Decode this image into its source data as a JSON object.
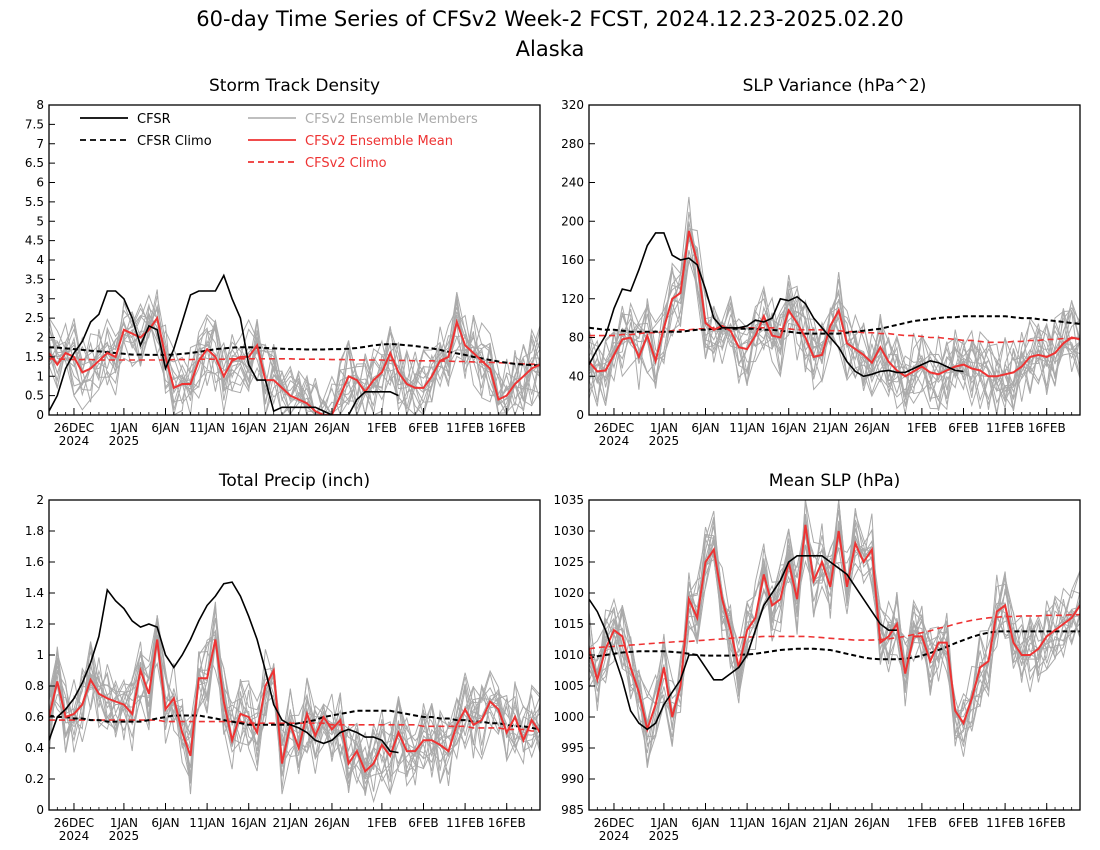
{
  "figure": {
    "title": "60-day Time Series of CFSv2 Week-2 FCST, 2024.12.23-2025.02.20",
    "subtitle": "Alaska"
  },
  "legend": {
    "entries": [
      {
        "label": "CFSR",
        "color": "#000000",
        "style": "solid"
      },
      {
        "label": "CFSR Climo",
        "color": "#000000",
        "style": "dashed"
      },
      {
        "label": "CFSv2 Ensemble Members",
        "color": "#aaaaaa",
        "style": "solid"
      },
      {
        "label": "CFSv2 Ensemble Mean",
        "color": "#ee3333",
        "style": "solid"
      },
      {
        "label": "CFSv2 Climo",
        "color": "#ee3333",
        "style": "dashed"
      }
    ]
  },
  "colors": {
    "cfsr": "#000000",
    "members": "#aaaaaa",
    "mean": "#ee3333"
  },
  "chart_data": [
    {
      "type": "line",
      "title": "Storm Track Density",
      "x_start": "2024-12-23",
      "x_days": 60,
      "x_unit": "day",
      "x_ticks": [
        "26DEC",
        "1JAN",
        "6JAN",
        "11JAN",
        "16JAN",
        "21JAN",
        "26JAN",
        "1FEB",
        "6FEB",
        "11FEB",
        "16FEB"
      ],
      "x_tick_days": [
        3,
        9,
        14,
        19,
        24,
        29,
        34,
        40,
        45,
        50,
        55
      ],
      "year_labels": [
        {
          "label": "2024",
          "day": 3
        },
        {
          "label": "2025",
          "day": 9
        }
      ],
      "ylim": [
        0,
        8
      ],
      "y_ticks": [
        0,
        0.5,
        1,
        1.5,
        2,
        2.5,
        3,
        3.5,
        4,
        4.5,
        5,
        5.5,
        6,
        6.5,
        7,
        7.5,
        8
      ],
      "y_tick_labels": [
        "0",
        "0.5",
        "1",
        "1.5",
        "2",
        "2.5",
        "3",
        "3.5",
        "4",
        "4.5",
        "5",
        "5.5",
        "6",
        "6.5",
        "7",
        "7.5",
        "8"
      ],
      "cfsr": [
        0.1,
        0.5,
        1.2,
        1.6,
        1.9,
        2.4,
        2.6,
        3.2,
        3.2,
        3.0,
        2.5,
        1.8,
        2.3,
        2.2,
        1.2,
        1.7,
        2.4,
        3.1,
        3.2,
        3.2,
        3.2,
        3.6,
        3.0,
        2.5,
        1.3,
        0.9,
        0.9,
        0.1,
        0.2,
        0.2,
        0.2,
        0.2,
        0.2,
        0.1,
        0,
        0,
        0,
        0.4,
        0.6,
        0.6,
        0.6,
        0.6,
        0.5
      ],
      "cfsr_climo": [
        1.75,
        1.74,
        1.72,
        1.7,
        1.68,
        1.66,
        1.64,
        1.62,
        1.6,
        1.58,
        1.56,
        1.56,
        1.55,
        1.55,
        1.55,
        1.56,
        1.58,
        1.6,
        1.63,
        1.66,
        1.7,
        1.72,
        1.74,
        1.75,
        1.75,
        1.74,
        1.73,
        1.72,
        1.71,
        1.7,
        1.7,
        1.69,
        1.69,
        1.69,
        1.7,
        1.7,
        1.71,
        1.73,
        1.76,
        1.8,
        1.82,
        1.83,
        1.82,
        1.8,
        1.78,
        1.75,
        1.72,
        1.68,
        1.63,
        1.59,
        1.55,
        1.5,
        1.46,
        1.42,
        1.38,
        1.35,
        1.32,
        1.3,
        1.29,
        1.28
      ],
      "mean": [
        1.6,
        1.3,
        1.6,
        1.5,
        1.1,
        1.2,
        1.4,
        1.6,
        1.5,
        2.2,
        2.1,
        2.0,
        2.2,
        2.5,
        1.5,
        0.7,
        0.8,
        0.8,
        1.4,
        1.7,
        1.5,
        1.0,
        1.4,
        1.5,
        1.5,
        1.8,
        0.9,
        0.9,
        0.7,
        0.5,
        0.4,
        0.3,
        0.1,
        0,
        0,
        0.5,
        1.0,
        0.9,
        0.6,
        0.9,
        1.1,
        1.6,
        1.1,
        0.8,
        0.7,
        0.7,
        1.0,
        1.4,
        1.5,
        2.4,
        1.8,
        1.6,
        1.4,
        1.2,
        0.4,
        0.5,
        0.8,
        1.0,
        1.2,
        1.3
      ],
      "cfsv2_climo": [
        1.45,
        1.44,
        1.44,
        1.43,
        1.43,
        1.43,
        1.42,
        1.42,
        1.42,
        1.42,
        1.42,
        1.42,
        1.42,
        1.42,
        1.42,
        1.43,
        1.43,
        1.43,
        1.44,
        1.44,
        1.44,
        1.44,
        1.45,
        1.45,
        1.45,
        1.45,
        1.45,
        1.45,
        1.45,
        1.45,
        1.44,
        1.44,
        1.44,
        1.44,
        1.43,
        1.43,
        1.43,
        1.42,
        1.42,
        1.42,
        1.42,
        1.41,
        1.41,
        1.41,
        1.4,
        1.4,
        1.4,
        1.39,
        1.39,
        1.38,
        1.38,
        1.37,
        1.37,
        1.36,
        1.35,
        1.34,
        1.33,
        1.32,
        1.31,
        1.3
      ],
      "members_count": 16
    },
    {
      "type": "line",
      "title": "SLP Variance (hPa^2)",
      "x_start": "2024-12-23",
      "x_days": 60,
      "x_unit": "day",
      "x_ticks": [
        "26DEC",
        "1JAN",
        "6JAN",
        "11JAN",
        "16JAN",
        "21JAN",
        "26JAN",
        "1FEB",
        "6FEB",
        "11FEB",
        "16FEB"
      ],
      "x_tick_days": [
        3,
        9,
        14,
        19,
        24,
        29,
        34,
        40,
        45,
        50,
        55
      ],
      "year_labels": [
        {
          "label": "2024",
          "day": 3
        },
        {
          "label": "2025",
          "day": 9
        }
      ],
      "ylim": [
        0,
        320
      ],
      "y_ticks": [
        0,
        40,
        80,
        120,
        160,
        200,
        240,
        280,
        320
      ],
      "y_tick_labels": [
        "0",
        "40",
        "80",
        "120",
        "160",
        "200",
        "240",
        "280",
        "320"
      ],
      "cfsr": [
        52,
        68,
        82,
        110,
        130,
        128,
        150,
        175,
        188,
        188,
        165,
        160,
        162,
        155,
        130,
        100,
        90,
        90,
        90,
        92,
        98,
        96,
        100,
        120,
        118,
        122,
        115,
        100,
        90,
        80,
        70,
        55,
        45,
        40,
        42,
        45,
        46,
        44,
        44,
        48,
        52,
        56,
        54,
        50,
        46,
        45
      ],
      "cfsr_climo": [
        90,
        89,
        88,
        88,
        87,
        86,
        86,
        86,
        86,
        86,
        86,
        86,
        87,
        88,
        88,
        89,
        89,
        89,
        89,
        89,
        89,
        88,
        88,
        87,
        86,
        85,
        84,
        84,
        84,
        84,
        84,
        85,
        86,
        87,
        88,
        89,
        91,
        93,
        95,
        97,
        98,
        99,
        100,
        101,
        101,
        102,
        102,
        102,
        102,
        102,
        102,
        101,
        100,
        100,
        99,
        98,
        97,
        96,
        95,
        94
      ],
      "mean": [
        55,
        45,
        46,
        62,
        78,
        80,
        60,
        82,
        56,
        90,
        120,
        126,
        190,
        158,
        95,
        88,
        92,
        87,
        70,
        68,
        82,
        102,
        82,
        80,
        108,
        95,
        80,
        60,
        62,
        92,
        108,
        74,
        68,
        62,
        54,
        70,
        55,
        46,
        40,
        45,
        50,
        44,
        42,
        46,
        50,
        52,
        48,
        46,
        40,
        40,
        42,
        44,
        50,
        60,
        62,
        60,
        64,
        74,
        80,
        78
      ],
      "cfsv2_climo": [
        82,
        82,
        82,
        82,
        83,
        83,
        84,
        85,
        85,
        86,
        87,
        88,
        88,
        89,
        89,
        90,
        90,
        90,
        90,
        90,
        90,
        90,
        90,
        89,
        89,
        88,
        88,
        88,
        88,
        87,
        87,
        86,
        86,
        85,
        85,
        84,
        84,
        83,
        82,
        82,
        81,
        80,
        80,
        79,
        78,
        77,
        77,
        76,
        75,
        75,
        75,
        76,
        76,
        77,
        77,
        78,
        78,
        79,
        79,
        79
      ],
      "members_count": 16
    },
    {
      "type": "line",
      "title": "Total Precip (inch)",
      "x_start": "2024-12-23",
      "x_days": 60,
      "x_unit": "day",
      "x_ticks": [
        "26DEC",
        "1JAN",
        "6JAN",
        "11JAN",
        "16JAN",
        "21JAN",
        "26JAN",
        "1FEB",
        "6FEB",
        "11FEB",
        "16FEB"
      ],
      "x_tick_days": [
        3,
        9,
        14,
        19,
        24,
        29,
        34,
        40,
        45,
        50,
        55
      ],
      "year_labels": [
        {
          "label": "2024",
          "day": 3
        },
        {
          "label": "2025",
          "day": 9
        }
      ],
      "ylim": [
        0,
        2
      ],
      "y_ticks": [
        0,
        0.2,
        0.4,
        0.6,
        0.8,
        1,
        1.2,
        1.4,
        1.6,
        1.8,
        2
      ],
      "y_tick_labels": [
        "0",
        "0.2",
        "0.4",
        "0.6",
        "0.8",
        "1",
        "1.2",
        "1.4",
        "1.6",
        "1.8",
        "2"
      ],
      "cfsr": [
        0.45,
        0.6,
        0.65,
        0.72,
        0.82,
        0.95,
        1.12,
        1.42,
        1.35,
        1.3,
        1.22,
        1.18,
        1.2,
        1.18,
        1.0,
        0.92,
        1.0,
        1.1,
        1.22,
        1.32,
        1.38,
        1.46,
        1.47,
        1.38,
        1.25,
        1.1,
        0.9,
        0.68,
        0.58,
        0.55,
        0.53,
        0.5,
        0.45,
        0.43,
        0.45,
        0.5,
        0.52,
        0.5,
        0.47,
        0.47,
        0.45,
        0.38,
        0.37
      ],
      "cfsr_climo": [
        0.61,
        0.6,
        0.6,
        0.59,
        0.59,
        0.58,
        0.58,
        0.57,
        0.57,
        0.57,
        0.57,
        0.57,
        0.58,
        0.59,
        0.6,
        0.61,
        0.61,
        0.61,
        0.61,
        0.6,
        0.59,
        0.58,
        0.57,
        0.56,
        0.55,
        0.55,
        0.55,
        0.55,
        0.55,
        0.55,
        0.56,
        0.57,
        0.58,
        0.6,
        0.61,
        0.62,
        0.63,
        0.64,
        0.64,
        0.64,
        0.64,
        0.64,
        0.63,
        0.62,
        0.61,
        0.6,
        0.6,
        0.59,
        0.59,
        0.58,
        0.58,
        0.57,
        0.57,
        0.56,
        0.56,
        0.55,
        0.54,
        0.54,
        0.53,
        0.52
      ],
      "mean": [
        0.6,
        0.83,
        0.6,
        0.62,
        0.68,
        0.84,
        0.75,
        0.72,
        0.7,
        0.68,
        0.62,
        0.9,
        0.75,
        1.1,
        0.65,
        0.72,
        0.5,
        0.35,
        0.85,
        0.85,
        1.1,
        0.7,
        0.45,
        0.62,
        0.6,
        0.5,
        0.8,
        0.9,
        0.3,
        0.55,
        0.4,
        0.62,
        0.48,
        0.6,
        0.52,
        0.58,
        0.3,
        0.38,
        0.25,
        0.3,
        0.42,
        0.35,
        0.5,
        0.38,
        0.38,
        0.45,
        0.45,
        0.42,
        0.38,
        0.55,
        0.65,
        0.55,
        0.58,
        0.7,
        0.65,
        0.5,
        0.6,
        0.45,
        0.58,
        0.5
      ],
      "cfsv2_climo": [
        0.58,
        0.58,
        0.58,
        0.58,
        0.58,
        0.58,
        0.58,
        0.58,
        0.58,
        0.58,
        0.58,
        0.58,
        0.58,
        0.58,
        0.57,
        0.57,
        0.57,
        0.57,
        0.57,
        0.57,
        0.57,
        0.57,
        0.57,
        0.57,
        0.56,
        0.56,
        0.56,
        0.56,
        0.56,
        0.56,
        0.56,
        0.56,
        0.56,
        0.56,
        0.55,
        0.55,
        0.55,
        0.55,
        0.55,
        0.55,
        0.55,
        0.55,
        0.55,
        0.55,
        0.55,
        0.54,
        0.54,
        0.54,
        0.54,
        0.54,
        0.54,
        0.53,
        0.53,
        0.53,
        0.53,
        0.52,
        0.52,
        0.52,
        0.51,
        0.51
      ],
      "members_count": 16
    },
    {
      "type": "line",
      "title": "Mean SLP (hPa)",
      "x_start": "2024-12-23",
      "x_days": 60,
      "x_unit": "day",
      "x_ticks": [
        "26DEC",
        "1JAN",
        "6JAN",
        "11JAN",
        "16JAN",
        "21JAN",
        "26JAN",
        "1FEB",
        "6FEB",
        "11FEB",
        "16FEB"
      ],
      "x_tick_days": [
        3,
        9,
        14,
        19,
        24,
        29,
        34,
        40,
        45,
        50,
        55
      ],
      "year_labels": [
        {
          "label": "2024",
          "day": 3
        },
        {
          "label": "2025",
          "day": 9
        }
      ],
      "ylim": [
        985,
        1035
      ],
      "y_ticks": [
        985,
        990,
        995,
        1000,
        1005,
        1010,
        1015,
        1020,
        1025,
        1030,
        1035
      ],
      "y_tick_labels": [
        "985",
        "990",
        "995",
        "1000",
        "1005",
        "1010",
        "1015",
        "1020",
        "1025",
        "1030",
        "1035"
      ],
      "cfsr": [
        1019,
        1017,
        1014,
        1010,
        1006,
        1001,
        999,
        998,
        999,
        1002,
        1004,
        1006,
        1010,
        1010,
        1008,
        1006,
        1006,
        1007,
        1008,
        1010,
        1014,
        1018,
        1020,
        1022,
        1025,
        1026,
        1026,
        1026,
        1026,
        1025,
        1024,
        1023,
        1021,
        1019,
        1017,
        1015,
        1014,
        1014
      ],
      "cfsr_climo": [
        1009.5,
        1009.8,
        1010.0,
        1010.2,
        1010.4,
        1010.5,
        1010.6,
        1010.6,
        1010.6,
        1010.6,
        1010.5,
        1010.4,
        1010.2,
        1010.0,
        1009.9,
        1009.9,
        1009.9,
        1009.9,
        1010.0,
        1010.1,
        1010.2,
        1010.4,
        1010.6,
        1010.8,
        1010.9,
        1011.0,
        1011.0,
        1011.0,
        1010.9,
        1010.8,
        1010.5,
        1010.2,
        1009.9,
        1009.6,
        1009.4,
        1009.3,
        1009.3,
        1009.3,
        1009.4,
        1009.6,
        1009.9,
        1010.3,
        1010.8,
        1011.3,
        1011.9,
        1012.4,
        1012.9,
        1013.3,
        1013.6,
        1013.8,
        1013.8,
        1013.8,
        1013.8,
        1013.8,
        1013.8,
        1013.8,
        1013.8,
        1013.8,
        1013.8,
        1013.8
      ],
      "mean": [
        1011,
        1006,
        1011,
        1014,
        1013,
        1008,
        1004,
        998,
        1002,
        1008,
        1000,
        1005,
        1019,
        1016,
        1025,
        1027,
        1019,
        1014,
        1008,
        1014,
        1016,
        1023,
        1018,
        1019,
        1025,
        1019,
        1031,
        1022,
        1025,
        1021,
        1030,
        1021,
        1028,
        1025,
        1027,
        1012,
        1013,
        1015,
        1007,
        1013,
        1013,
        1009,
        1012,
        1012,
        1001,
        999,
        1003,
        1008,
        1009,
        1017,
        1018,
        1012,
        1010,
        1010,
        1011,
        1013,
        1014,
        1015,
        1016,
        1018
      ],
      "cfsv2_climo": [
        1011.0,
        1011.2,
        1011.3,
        1011.4,
        1011.5,
        1011.6,
        1011.7,
        1011.8,
        1011.9,
        1012.0,
        1012.1,
        1012.2,
        1012.2,
        1012.3,
        1012.4,
        1012.5,
        1012.6,
        1012.7,
        1012.8,
        1012.9,
        1012.9,
        1013.0,
        1013.0,
        1013.0,
        1013.0,
        1013.0,
        1013.0,
        1012.9,
        1012.8,
        1012.7,
        1012.6,
        1012.5,
        1012.4,
        1012.4,
        1012.4,
        1012.5,
        1012.6,
        1012.8,
        1013.0,
        1013.3,
        1013.6,
        1013.9,
        1014.3,
        1014.6,
        1015.0,
        1015.3,
        1015.6,
        1015.8,
        1016.0,
        1016.1,
        1016.2,
        1016.2,
        1016.3,
        1016.3,
        1016.3,
        1016.4,
        1016.4,
        1016.4,
        1016.5,
        1016.5
      ],
      "members_count": 16
    }
  ]
}
